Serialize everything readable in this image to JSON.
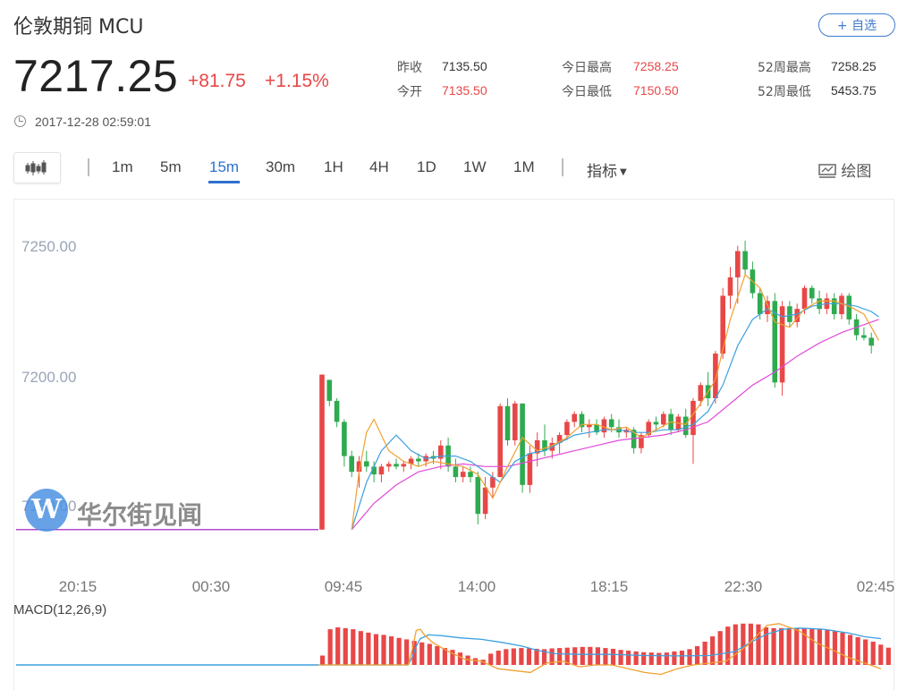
{
  "header": {
    "title": "伦敦期铜  MCU",
    "watch_button": "+ 自选",
    "price": "7217.25",
    "change": "+81.75",
    "change_pct": "+1.15%",
    "timestamp": "2017-12-28 02:59:01"
  },
  "stats": [
    {
      "label": "昨收",
      "value": "7135.50",
      "color": "#333333"
    },
    {
      "label": "今开",
      "value": "7135.50",
      "color": "#e84747"
    },
    {
      "label": "今日最高",
      "value": "7258.25",
      "color": "#e84747"
    },
    {
      "label": "今日最低",
      "value": "7150.50",
      "color": "#e84747"
    },
    {
      "label": "52周最高",
      "value": "7258.25",
      "color": "#333333"
    },
    {
      "label": "52周最低",
      "value": "5453.75",
      "color": "#333333"
    }
  ],
  "toolbar": {
    "periods": [
      "1m",
      "5m",
      "15m",
      "30m",
      "1H",
      "4H",
      "1D",
      "1W",
      "1M"
    ],
    "active_period": "15m",
    "indicator_label": "指标",
    "draw_label": "绘图"
  },
  "watermark": "华尔街见闻",
  "watermark_logo": "W",
  "macd_label": "MACD(12,26,9)",
  "colors": {
    "up": "#e84747",
    "down": "#2eaa4f",
    "accent": "#2e70cf"
  },
  "chart_data": {
    "type": "candlestick",
    "y_ticks": [
      "7250.00",
      "7200.00",
      "7150.00"
    ],
    "x_ticks": [
      "20:15",
      "00:30",
      "09:45",
      "14:00",
      "18:15",
      "22:30",
      "02:45"
    ],
    "ylim": [
      7143.5,
      7268.5
    ],
    "flat_value": 7148,
    "candles": [
      [
        7148,
        7207,
        7148,
        7207
      ],
      [
        7205,
        7205,
        7195,
        7197
      ],
      [
        7197,
        7198,
        7187,
        7189
      ],
      [
        7189,
        7190,
        7172,
        7176
      ],
      [
        7176,
        7178,
        7168,
        7170
      ],
      [
        7170,
        7176,
        7164,
        7174
      ],
      [
        7174,
        7178,
        7170,
        7172
      ],
      [
        7172,
        7174,
        7166,
        7169
      ],
      [
        7169,
        7173,
        7166,
        7172
      ],
      [
        7172,
        7174,
        7170,
        7173
      ],
      [
        7173,
        7175,
        7171,
        7172
      ],
      [
        7172,
        7174,
        7170,
        7173
      ],
      [
        7173,
        7176,
        7171,
        7175
      ],
      [
        7175,
        7177,
        7172,
        7174
      ],
      [
        7174,
        7177,
        7172,
        7176
      ],
      [
        7176,
        7178,
        7173,
        7175
      ],
      [
        7175,
        7182,
        7171,
        7180
      ],
      [
        7180,
        7183,
        7170,
        7172
      ],
      [
        7172,
        7175,
        7166,
        7168
      ],
      [
        7168,
        7172,
        7166,
        7170
      ],
      [
        7170,
        7172,
        7166,
        7168
      ],
      [
        7168,
        7170,
        7150,
        7154
      ],
      [
        7154,
        7168,
        7152,
        7164
      ],
      [
        7164,
        7170,
        7160,
        7168
      ],
      [
        7168,
        7196,
        7168,
        7195
      ],
      [
        7195,
        7198,
        7180,
        7182
      ],
      [
        7182,
        7197,
        7180,
        7196
      ],
      [
        7196,
        7196,
        7162,
        7165
      ],
      [
        7165,
        7180,
        7162,
        7177
      ],
      [
        7177,
        7185,
        7172,
        7182
      ],
      [
        7182,
        7188,
        7176,
        7178
      ],
      [
        7178,
        7183,
        7175,
        7181
      ],
      [
        7181,
        7185,
        7177,
        7184
      ],
      [
        7184,
        7190,
        7182,
        7189
      ],
      [
        7189,
        7193,
        7187,
        7192
      ],
      [
        7192,
        7193,
        7185,
        7187
      ],
      [
        7187,
        7190,
        7183,
        7188
      ],
      [
        7188,
        7190,
        7184,
        7185
      ],
      [
        7185,
        7191,
        7183,
        7190
      ],
      [
        7190,
        7192,
        7185,
        7187
      ],
      [
        7187,
        7190,
        7183,
        7185
      ],
      [
        7185,
        7187,
        7183,
        7186
      ],
      [
        7186,
        7187,
        7177,
        7179
      ],
      [
        7179,
        7185,
        7177,
        7184
      ],
      [
        7184,
        7190,
        7183,
        7189
      ],
      [
        7189,
        7191,
        7186,
        7188
      ],
      [
        7188,
        7193,
        7187,
        7192
      ],
      [
        7192,
        7194,
        7184,
        7186
      ],
      [
        7186,
        7192,
        7185,
        7191
      ],
      [
        7191,
        7194,
        7183,
        7184
      ],
      [
        7184,
        7198,
        7173,
        7197
      ],
      [
        7197,
        7204,
        7195,
        7203
      ],
      [
        7203,
        7208,
        7195,
        7198
      ],
      [
        7198,
        7216,
        7196,
        7215
      ],
      [
        7215,
        7240,
        7213,
        7237
      ],
      [
        7237,
        7248,
        7232,
        7244
      ],
      [
        7244,
        7256,
        7234,
        7254
      ],
      [
        7254,
        7258,
        7245,
        7247
      ],
      [
        7247,
        7250,
        7236,
        7238
      ],
      [
        7238,
        7240,
        7228,
        7230
      ],
      [
        7230,
        7237,
        7227,
        7235
      ],
      [
        7235,
        7238,
        7202,
        7204
      ],
      [
        7204,
        7235,
        7199,
        7233
      ],
      [
        7233,
        7235,
        7225,
        7227
      ],
      [
        7227,
        7234,
        7225,
        7232
      ],
      [
        7232,
        7241,
        7230,
        7240
      ],
      [
        7240,
        7241,
        7234,
        7236
      ],
      [
        7236,
        7239,
        7230,
        7232
      ],
      [
        7232,
        7238,
        7230,
        7236
      ],
      [
        7236,
        7238,
        7228,
        7230
      ],
      [
        7230,
        7238,
        7228,
        7237
      ],
      [
        7237,
        7238,
        7226,
        7228
      ],
      [
        7228,
        7230,
        7220,
        7222
      ],
      [
        7222,
        7225,
        7220,
        7221
      ],
      [
        7221,
        7223,
        7215,
        7218
      ]
    ],
    "ma_fast": [
      [
        4,
        7148
      ],
      [
        5,
        7170
      ],
      [
        6,
        7185
      ],
      [
        7,
        7190
      ],
      [
        9,
        7178
      ],
      [
        11,
        7174
      ],
      [
        13,
        7172
      ],
      [
        15,
        7174
      ],
      [
        17,
        7173
      ],
      [
        19,
        7172
      ],
      [
        21,
        7169
      ],
      [
        23,
        7160
      ],
      [
        25,
        7172
      ],
      [
        27,
        7183
      ],
      [
        29,
        7178
      ],
      [
        31,
        7180
      ],
      [
        33,
        7183
      ],
      [
        35,
        7188
      ],
      [
        37,
        7188
      ],
      [
        39,
        7186
      ],
      [
        41,
        7187
      ],
      [
        43,
        7183
      ],
      [
        45,
        7186
      ],
      [
        47,
        7189
      ],
      [
        49,
        7188
      ],
      [
        51,
        7196
      ],
      [
        53,
        7205
      ],
      [
        55,
        7228
      ],
      [
        57,
        7245
      ],
      [
        59,
        7240
      ],
      [
        61,
        7227
      ],
      [
        63,
        7225
      ],
      [
        65,
        7232
      ],
      [
        67,
        7235
      ],
      [
        69,
        7235
      ],
      [
        71,
        7233
      ],
      [
        73,
        7230
      ],
      [
        75,
        7220
      ]
    ],
    "ma_mid": [
      [
        4,
        7148
      ],
      [
        6,
        7166
      ],
      [
        8,
        7178
      ],
      [
        10,
        7184
      ],
      [
        12,
        7178
      ],
      [
        14,
        7175
      ],
      [
        16,
        7176
      ],
      [
        18,
        7176
      ],
      [
        20,
        7174
      ],
      [
        22,
        7170
      ],
      [
        24,
        7166
      ],
      [
        26,
        7174
      ],
      [
        28,
        7177
      ],
      [
        30,
        7178
      ],
      [
        32,
        7181
      ],
      [
        34,
        7184
      ],
      [
        36,
        7185
      ],
      [
        38,
        7186
      ],
      [
        40,
        7186
      ],
      [
        42,
        7185
      ],
      [
        44,
        7185
      ],
      [
        46,
        7186
      ],
      [
        48,
        7186
      ],
      [
        50,
        7188
      ],
      [
        52,
        7193
      ],
      [
        54,
        7203
      ],
      [
        56,
        7218
      ],
      [
        58,
        7228
      ],
      [
        60,
        7232
      ],
      [
        62,
        7229
      ],
      [
        64,
        7230
      ],
      [
        66,
        7233
      ],
      [
        68,
        7234
      ],
      [
        70,
        7234
      ],
      [
        72,
        7233
      ],
      [
        74,
        7231
      ],
      [
        75,
        7229
      ]
    ],
    "ma_slow": [
      [
        4,
        7148
      ],
      [
        7,
        7158
      ],
      [
        10,
        7165
      ],
      [
        13,
        7170
      ],
      [
        16,
        7172
      ],
      [
        19,
        7173
      ],
      [
        22,
        7172
      ],
      [
        25,
        7172
      ],
      [
        28,
        7174
      ],
      [
        31,
        7176
      ],
      [
        34,
        7178
      ],
      [
        37,
        7180
      ],
      [
        40,
        7182
      ],
      [
        43,
        7183
      ],
      [
        46,
        7184
      ],
      [
        49,
        7186
      ],
      [
        52,
        7189
      ],
      [
        55,
        7196
      ],
      [
        58,
        7203
      ],
      [
        61,
        7208
      ],
      [
        64,
        7214
      ],
      [
        67,
        7219
      ],
      [
        70,
        7223
      ],
      [
        73,
        7226
      ],
      [
        75,
        7228
      ]
    ],
    "macd_hist": [
      0.25,
      0.95,
      1.0,
      0.98,
      0.95,
      0.9,
      0.86,
      0.82,
      0.8,
      0.76,
      0.72,
      0.68,
      0.64,
      0.6,
      0.56,
      0.5,
      0.45,
      0.4,
      0.33,
      0.25,
      0.18,
      0.14,
      0.3,
      0.38,
      0.42,
      0.44,
      0.45,
      0.44,
      0.43,
      0.42,
      0.44,
      0.45,
      0.46,
      0.47,
      0.48,
      0.48,
      0.47,
      0.45,
      0.43,
      0.4,
      0.38,
      0.36,
      0.34,
      0.33,
      0.32,
      0.33,
      0.36,
      0.38,
      0.42,
      0.5,
      0.62,
      0.76,
      0.9,
      1.02,
      1.08,
      1.1,
      1.1,
      1.08,
      1.0,
      0.98,
      0.98,
      0.98,
      0.98,
      0.98,
      0.97,
      0.96,
      0.94,
      0.9,
      0.86,
      0.8,
      0.74,
      0.68,
      0.62,
      0.54,
      0.46
    ],
    "macd_dif": [
      [
        0,
        0
      ],
      [
        22,
        0
      ],
      [
        23,
        0.4
      ],
      [
        24,
        0.92
      ],
      [
        25,
        0.95
      ],
      [
        26,
        0.8
      ],
      [
        28,
        0.6
      ],
      [
        32,
        0.35
      ],
      [
        36,
        0.15
      ],
      [
        40,
        0.1
      ],
      [
        44,
        -0.1
      ],
      [
        48,
        -0.15
      ],
      [
        52,
        -0.2
      ],
      [
        56,
        0.05
      ],
      [
        60,
        0.1
      ],
      [
        64,
        -0.05
      ],
      [
        68,
        0.0
      ],
      [
        72,
        0.0
      ],
      [
        76,
        -0.1
      ],
      [
        80,
        -0.2
      ],
      [
        84,
        -0.25
      ],
      [
        88,
        -0.1
      ],
      [
        92,
        0.0
      ],
      [
        96,
        0.05
      ],
      [
        100,
        0.1
      ],
      [
        105,
        0.5
      ],
      [
        110,
        1.05
      ],
      [
        113,
        1.1
      ],
      [
        118,
        0.9
      ],
      [
        122,
        0.6
      ],
      [
        126,
        0.4
      ],
      [
        130,
        0.2
      ],
      [
        134,
        0.05
      ],
      [
        138,
        -0.1
      ]
    ],
    "macd_dea": [
      [
        0,
        0
      ],
      [
        22,
        0
      ],
      [
        23,
        0.2
      ],
      [
        24,
        0.5
      ],
      [
        25,
        0.7
      ],
      [
        27,
        0.8
      ],
      [
        30,
        0.78
      ],
      [
        35,
        0.72
      ],
      [
        40,
        0.68
      ],
      [
        45,
        0.6
      ],
      [
        50,
        0.5
      ],
      [
        54,
        0.38
      ],
      [
        58,
        0.3
      ],
      [
        64,
        0.28
      ],
      [
        72,
        0.28
      ],
      [
        80,
        0.25
      ],
      [
        88,
        0.24
      ],
      [
        96,
        0.25
      ],
      [
        102,
        0.35
      ],
      [
        106,
        0.6
      ],
      [
        110,
        0.82
      ],
      [
        114,
        0.95
      ],
      [
        118,
        0.98
      ],
      [
        124,
        0.95
      ],
      [
        130,
        0.85
      ],
      [
        134,
        0.75
      ],
      [
        138,
        0.7
      ]
    ]
  }
}
